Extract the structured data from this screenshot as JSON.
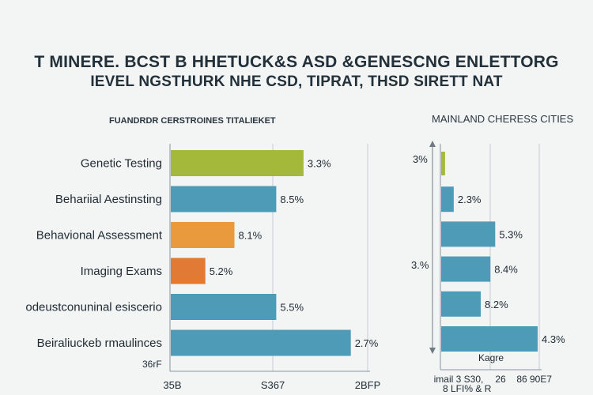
{
  "header": {
    "title": "T MINERE. BCST  B HHETUCK&S ASD &GENESCNG ENLETTORG",
    "subtitle": "IEVEL NGSTHURK  NHE CSD, TIPRAT, THSD SIRETT NAT"
  },
  "chart_data": [
    {
      "type": "bar",
      "orientation": "horizontal",
      "title": "FUANDRDR CERSTROINES TITALIEKET",
      "categories": [
        "Genetic Testing",
        "Behariial Aestinsting",
        "Behavional Assessment",
        "Imaging Exams",
        "odeustconuninal esiscerio",
        "Beiraliuckeb rmaulinces"
      ],
      "values": [
        3.3,
        8.5,
        8.1,
        5.2,
        5.5,
        2.7
      ],
      "value_labels": [
        "3.3%",
        "8.5%",
        "8.1%",
        "5.2%",
        "5.5%",
        "2.7%"
      ],
      "colors": [
        "#a4b93a",
        "#4e9bb8",
        "#e89a3c",
        "#e07a35",
        "#4e9bb8",
        "#4e9bb8"
      ],
      "x_tick_labels": [
        "35B",
        "S367",
        "2BFP"
      ],
      "extra_label": "36rF",
      "bar_lengths_relative": [
        0.73,
        0.58,
        0.35,
        0.19,
        0.58,
        0.99
      ]
    },
    {
      "type": "bar",
      "orientation": "horizontal",
      "title": "MAINLAND CHERESS CITIES",
      "categories": [
        "",
        "",
        "",
        "",
        "",
        ""
      ],
      "values": [
        3,
        2.3,
        5.3,
        8.4,
        8.2,
        4.3
      ],
      "value_labels": [
        "",
        "2.3%",
        "5.3%",
        "8.4%",
        "8.2%",
        "4.3%"
      ],
      "y_axis_labels": [
        "3%",
        "3.%"
      ],
      "x_label": "Kagre",
      "x_tick_labels": [
        "imail 3 S30,",
        "26",
        "86",
        "90E7"
      ],
      "extra_label": "8 LFI% & R",
      "colors": [
        "#a4b93a",
        "#4e9bb8",
        "#4e9bb8",
        "#4e9bb8",
        "#4e9bb8",
        "#4e9bb8"
      ],
      "bar_lengths_relative": [
        0.04,
        0.13,
        0.56,
        0.51,
        0.41,
        1.0
      ]
    }
  ]
}
